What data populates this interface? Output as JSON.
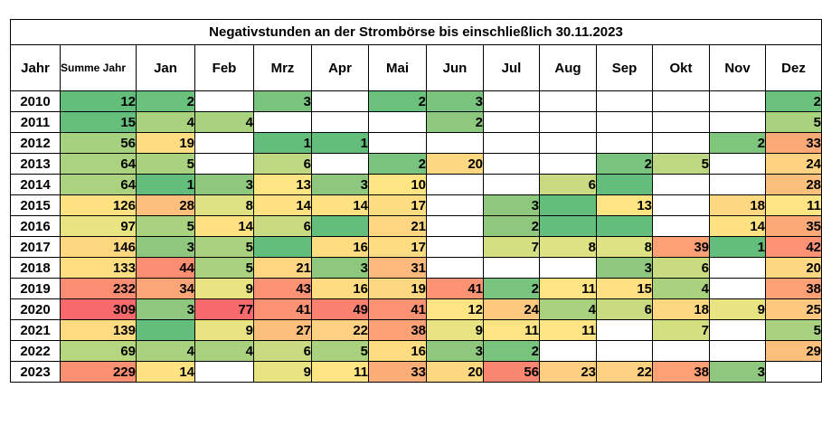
{
  "title": "Negativstunden an der Strombörse bis einschließlich  30.11.2023",
  "headers": [
    "Jahr",
    "Summe Jahr",
    "Jan",
    "Feb",
    "Mrz",
    "Apr",
    "Mai",
    "Jun",
    "Jul",
    "Aug",
    "Sep",
    "Okt",
    "Nov",
    "Dez"
  ],
  "rows": [
    {
      "year": "2010",
      "values": [
        "12",
        "2",
        "",
        "3",
        "",
        "2",
        "3",
        "",
        "",
        "",
        "",
        "",
        "2"
      ],
      "colors": [
        "#63be7b",
        "#6ac17c",
        "",
        "#78c47e",
        "",
        "#6ac17c",
        "#78c47e",
        "",
        "",
        "",
        "",
        "",
        "#6ac17c"
      ]
    },
    {
      "year": "2011",
      "values": [
        "15",
        "4",
        "4",
        "",
        "",
        "",
        "2",
        "",
        "",
        "",
        "",
        "",
        "5"
      ],
      "colors": [
        "#65bf7b",
        "#a9d27f",
        "#a9d27f",
        "",
        "",
        "",
        "#8ec87e",
        "",
        "",
        "",
        "",
        "",
        "#a9d27f"
      ]
    },
    {
      "year": "2012",
      "values": [
        "56",
        "19",
        "",
        "1",
        "1",
        "",
        "",
        "",
        "",
        "",
        "",
        "2",
        "33"
      ],
      "colors": [
        "#a6d17f",
        "#fedc81",
        "",
        "#63be7b",
        "#63be7b",
        "",
        "",
        "",
        "",
        "",
        "",
        "#7fc67d",
        "#fba977"
      ]
    },
    {
      "year": "2013",
      "values": [
        "64",
        "5",
        "",
        "6",
        "",
        "2",
        "20",
        "",
        "",
        "2",
        "5",
        "",
        "24"
      ],
      "colors": [
        "#aad27f",
        "#a9d27f",
        "",
        "#bdd881",
        "",
        "#78c47e",
        "#fed881",
        "",
        "",
        "#78c47e",
        "#bdd881",
        "",
        "#fed281"
      ]
    },
    {
      "year": "2014",
      "values": [
        "64",
        "1",
        "3",
        "13",
        "3",
        "10",
        "",
        "",
        "6",
        "",
        "",
        "",
        "28"
      ],
      "colors": [
        "#aad27f",
        "#63be7b",
        "#8ec87e",
        "#fee482",
        "#8ec87e",
        "#fee482",
        "",
        "",
        "#c9db81",
        "#63be7b",
        "",
        "",
        "#fdc07c"
      ]
    },
    {
      "year": "2015",
      "values": [
        "126",
        "28",
        "8",
        "14",
        "14",
        "17",
        "",
        "3",
        "",
        "13",
        "",
        "18",
        "11"
      ],
      "colors": [
        "#fee282",
        "#fdc07c",
        "#dee282",
        "#fee282",
        "#fee282",
        "#fedc81",
        "",
        "#8ec87e",
        "#63be7b",
        "#fee482",
        "",
        "#fed881",
        "#fee482"
      ]
    },
    {
      "year": "2016",
      "values": [
        "97",
        "5",
        "14",
        "6",
        "",
        "21",
        "",
        "2",
        "",
        "",
        "",
        "14",
        "35"
      ],
      "colors": [
        "#e8e482",
        "#a9d27f",
        "#fee282",
        "#c9db81",
        "#63be7b",
        "#fed681",
        "",
        "#8ec87e",
        "#63be7b",
        "#63be7b",
        "",
        "#fee282",
        "#fba977"
      ]
    },
    {
      "year": "2017",
      "values": [
        "146",
        "3",
        "5",
        "",
        "16",
        "17",
        "",
        "7",
        "8",
        "8",
        "39",
        "1",
        "42"
      ],
      "colors": [
        "#fed781",
        "#8ec87e",
        "#a9d27f",
        "#63be7b",
        "#fedc81",
        "#fedc81",
        "",
        "#d4df82",
        "#dee282",
        "#dee282",
        "#fca076",
        "#63be7b",
        "#fb9274"
      ]
    },
    {
      "year": "2018",
      "values": [
        "133",
        "44",
        "5",
        "21",
        "3",
        "31",
        "",
        "",
        "",
        "3",
        "6",
        "",
        "20"
      ],
      "colors": [
        "#fede81",
        "#fb8e72",
        "#a9d27f",
        "#fed681",
        "#8ec87e",
        "#fdb87b",
        "",
        "",
        "",
        "#8ec87e",
        "#c9db81",
        "",
        "#fed881"
      ]
    },
    {
      "year": "2019",
      "values": [
        "232",
        "34",
        "9",
        "43",
        "16",
        "19",
        "41",
        "2",
        "11",
        "15",
        "4",
        "",
        "38"
      ],
      "colors": [
        "#fb8e72",
        "#fca677",
        "#e8e482",
        "#fb9274",
        "#fedc81",
        "#fed881",
        "#fb9274",
        "#78c47e",
        "#fee482",
        "#fee082",
        "#a9d27f",
        "",
        "#fca076"
      ]
    },
    {
      "year": "2020",
      "values": [
        "309",
        "3",
        "77",
        "41",
        "49",
        "41",
        "12",
        "24",
        "4",
        "6",
        "18",
        "9",
        "25"
      ],
      "colors": [
        "#f8696b",
        "#8ec87e",
        "#f8696b",
        "#fb9274",
        "#fa8170",
        "#fb9274",
        "#fee482",
        "#fec97f",
        "#a9d27f",
        "#c9db81",
        "#fed881",
        "#e8e482",
        "#fec97f"
      ]
    },
    {
      "year": "2021",
      "values": [
        "139",
        "",
        "9",
        "27",
        "22",
        "38",
        "9",
        "11",
        "11",
        "",
        "7",
        "",
        "5"
      ],
      "colors": [
        "#feda81",
        "#63be7b",
        "#e8e482",
        "#fdc07c",
        "#fed081",
        "#fca076",
        "#e8e482",
        "#fee482",
        "#fee482",
        "",
        "#d4df82",
        "",
        "#a9d27f"
      ]
    },
    {
      "year": "2022",
      "values": [
        "69",
        "4",
        "4",
        "6",
        "5",
        "16",
        "3",
        "2",
        "",
        "",
        "",
        "",
        "29"
      ],
      "colors": [
        "#b7d680",
        "#a9d27f",
        "#a9d27f",
        "#c9db81",
        "#a9d27f",
        "#fedc81",
        "#8ec87e",
        "#78c47e",
        "",
        "",
        "",
        "",
        "#fdc07c"
      ]
    },
    {
      "year": "2023",
      "values": [
        "229",
        "14",
        "",
        "9",
        "11",
        "33",
        "20",
        "56",
        "23",
        "22",
        "38",
        "3",
        ""
      ],
      "colors": [
        "#fb9072",
        "#fee282",
        "",
        "#e8e482",
        "#fee482",
        "#fbad78",
        "#fed881",
        "#f98670",
        "#fecf80",
        "#fed081",
        "#fca076",
        "#8ec87e",
        ""
      ]
    }
  ]
}
